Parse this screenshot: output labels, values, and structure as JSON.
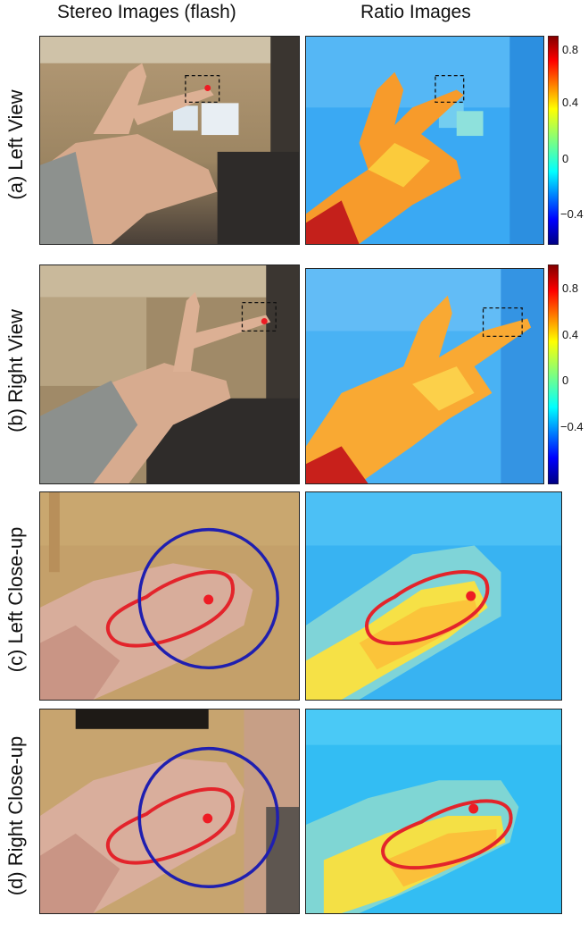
{
  "headers": {
    "left": "Stereo Images (flash)",
    "right": "Ratio Images"
  },
  "rows": [
    {
      "label": "(a) Left View"
    },
    {
      "label": "(b) Right View"
    },
    {
      "label": "(c) Left Close-up"
    },
    {
      "label": "(d) Right Close-up"
    }
  ],
  "colorbar": {
    "ticks_a": [
      "0.8",
      "0.4",
      "0",
      "−0.4"
    ],
    "ticks_b": [
      "0.8",
      "0.4",
      "0",
      "−0.4"
    ]
  },
  "colors": {
    "marker": "#ee1c24",
    "contour": "#e3242b",
    "circle": "#1f1fb0"
  }
}
